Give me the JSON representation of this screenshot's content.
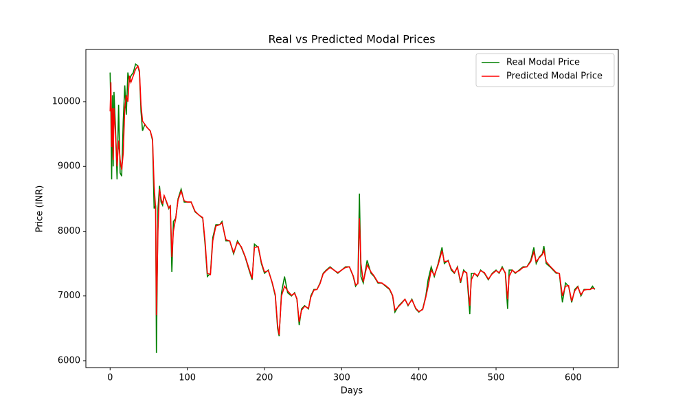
{
  "chart_data": {
    "type": "line",
    "title": "Real vs Predicted Modal Prices",
    "xlabel": "Days",
    "ylabel": "Price (INR)",
    "x": [
      0,
      1,
      2,
      3,
      4,
      5,
      7,
      9,
      11,
      13,
      15,
      17,
      19,
      21,
      23,
      25,
      27,
      30,
      33,
      36,
      38,
      40,
      42,
      45,
      48,
      52,
      55,
      57,
      59,
      60,
      62,
      64,
      66,
      68,
      70,
      73,
      76,
      78,
      80,
      82,
      85,
      88,
      92,
      96,
      100,
      105,
      110,
      115,
      120,
      123,
      126,
      130,
      133,
      137,
      142,
      145,
      150,
      155,
      160,
      165,
      170,
      175,
      180,
      184,
      187,
      192,
      196,
      200,
      205,
      210,
      214,
      217,
      219,
      222,
      226,
      230,
      235,
      239,
      242,
      245,
      248,
      252,
      257,
      260,
      264,
      268,
      272,
      276,
      280,
      285,
      290,
      295,
      300,
      305,
      310,
      315,
      318,
      321,
      323,
      325,
      328,
      333,
      338,
      342,
      347,
      352,
      357,
      362,
      366,
      369,
      374,
      378,
      382,
      386,
      391,
      396,
      400,
      405,
      409,
      412,
      416,
      420,
      425,
      430,
      433,
      438,
      442,
      446,
      450,
      454,
      458,
      462,
      466,
      468,
      472,
      476,
      480,
      485,
      490,
      495,
      500,
      504,
      508,
      512,
      515,
      517,
      521,
      525,
      530,
      535,
      540,
      545,
      549,
      552,
      556,
      560,
      562,
      565,
      570,
      574,
      578,
      582,
      586,
      590,
      594,
      598,
      602,
      606,
      610,
      614,
      618,
      622,
      625,
      628
    ],
    "series": [
      {
        "name": "Real Modal Price",
        "color": "#008000",
        "values": [
          10450,
          9850,
          8800,
          10100,
          9000,
          10150,
          9600,
          8800,
          9950,
          8900,
          8850,
          9700,
          10250,
          9800,
          10450,
          10300,
          10400,
          10450,
          10580,
          10550,
          10450,
          9850,
          9550,
          9650,
          9600,
          9550,
          9400,
          8350,
          8400,
          6120,
          8350,
          8700,
          8450,
          8400,
          8550,
          8450,
          8350,
          8400,
          7370,
          8150,
          8200,
          8500,
          8650,
          8450,
          8450,
          8450,
          8300,
          8250,
          8200,
          7800,
          7300,
          7350,
          7900,
          8100,
          8100,
          8150,
          7850,
          7850,
          7650,
          7850,
          7750,
          7600,
          7400,
          7250,
          7800,
          7750,
          7500,
          7350,
          7400,
          7200,
          7000,
          6500,
          6380,
          7050,
          7300,
          7050,
          7000,
          7050,
          6950,
          6550,
          6800,
          6850,
          6800,
          7000,
          7100,
          7100,
          7200,
          7350,
          7400,
          7450,
          7400,
          7350,
          7400,
          7450,
          7450,
          7300,
          7150,
          7200,
          8580,
          7300,
          7200,
          7550,
          7350,
          7300,
          7200,
          7200,
          7150,
          7100,
          7000,
          6750,
          6850,
          6900,
          6950,
          6850,
          6950,
          6800,
          6750,
          6800,
          7000,
          7250,
          7450,
          7300,
          7500,
          7750,
          7500,
          7550,
          7400,
          7350,
          7450,
          7200,
          7400,
          7350,
          6720,
          7350,
          7350,
          7300,
          7400,
          7350,
          7250,
          7350,
          7400,
          7350,
          7450,
          7350,
          6800,
          7400,
          7400,
          7350,
          7400,
          7450,
          7450,
          7550,
          7750,
          7500,
          7600,
          7650,
          7770,
          7500,
          7450,
          7400,
          7350,
          7350,
          6900,
          7200,
          7150,
          6900,
          7100,
          7150,
          7000,
          7100,
          7100,
          7100,
          7150,
          7100
        ]
      },
      {
        "name": "Predicted Modal Price",
        "color": "#ff0000",
        "values": [
          9850,
          10300,
          9300,
          9900,
          9100,
          9900,
          9500,
          9000,
          9400,
          9100,
          8950,
          9200,
          9900,
          10100,
          10000,
          10400,
          10300,
          10400,
          10500,
          10550,
          10480,
          9950,
          9700,
          9650,
          9600,
          9550,
          9420,
          8700,
          8350,
          6700,
          8000,
          8650,
          8500,
          8420,
          8550,
          8460,
          8360,
          8390,
          7600,
          8000,
          8200,
          8480,
          8620,
          8470,
          8450,
          8450,
          8310,
          8250,
          8210,
          7850,
          7350,
          7330,
          7850,
          8080,
          8100,
          8130,
          7870,
          7850,
          7670,
          7830,
          7760,
          7610,
          7420,
          7270,
          7750,
          7760,
          7520,
          7370,
          7390,
          7210,
          7020,
          6550,
          6400,
          7000,
          7150,
          7080,
          7010,
          7040,
          6960,
          6600,
          6780,
          6840,
          6810,
          6980,
          7090,
          7100,
          7190,
          7340,
          7390,
          7440,
          7400,
          7360,
          7400,
          7440,
          7450,
          7310,
          7170,
          7190,
          8200,
          7500,
          7220,
          7480,
          7370,
          7310,
          7210,
          7200,
          7160,
          7110,
          7010,
          6780,
          6840,
          6890,
          6950,
          6860,
          6940,
          6810,
          6760,
          6790,
          6980,
          7150,
          7400,
          7320,
          7480,
          7700,
          7530,
          7540,
          7420,
          7360,
          7440,
          7230,
          7380,
          7360,
          6850,
          7250,
          7350,
          7310,
          7390,
          7360,
          7260,
          7340,
          7390,
          7360,
          7430,
          7360,
          6950,
          7300,
          7400,
          7360,
          7390,
          7440,
          7450,
          7530,
          7680,
          7530,
          7590,
          7640,
          7700,
          7530,
          7460,
          7410,
          7360,
          7350,
          7000,
          7150,
          7160,
          6920,
          7080,
          7140,
          7020,
          7090,
          7100,
          7100,
          7120,
          7110
        ]
      }
    ],
    "xlim": [
      -31.4,
      658.4
    ],
    "ylim": [
      5894,
      10806
    ],
    "xticks": [
      0,
      100,
      200,
      300,
      400,
      500,
      600
    ],
    "yticks": [
      6000,
      7000,
      8000,
      9000,
      10000
    ],
    "legend": "upper right"
  }
}
